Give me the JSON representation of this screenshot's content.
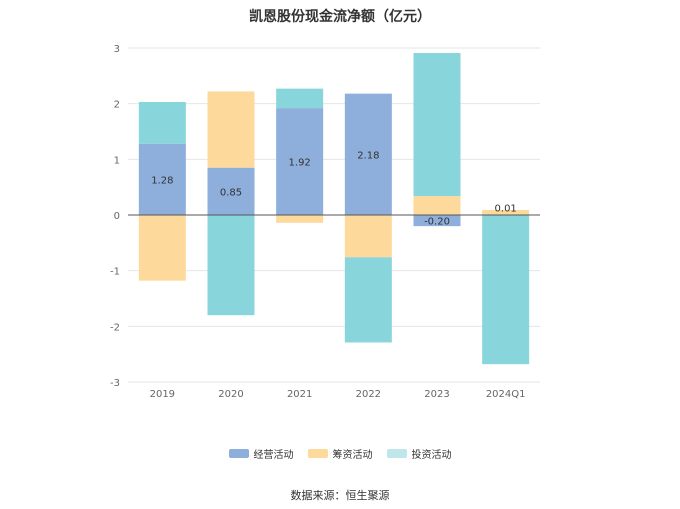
{
  "chart_data": {
    "type": "bar",
    "stacked": true,
    "title": "凯恩股份现金流净额（亿元）",
    "xlabel": "",
    "ylabel": "",
    "categories": [
      "2019",
      "2020",
      "2021",
      "2022",
      "2023",
      "2024Q1"
    ],
    "ylim": [
      -3,
      3
    ],
    "yticks": [
      3,
      2,
      1,
      0,
      -1,
      -2,
      -3
    ],
    "grid": true,
    "legend_position": "bottom",
    "series": [
      {
        "name": "经营活动",
        "color": "#8eaedb",
        "values": [
          1.28,
          0.85,
          1.92,
          2.18,
          -0.2,
          0.01
        ]
      },
      {
        "name": "筹资活动",
        "color": "#fdd99b",
        "values": [
          -1.18,
          1.37,
          -0.14,
          -0.76,
          0.34,
          0.08
        ]
      },
      {
        "name": "投资活动",
        "color": "#88d5db",
        "values": [
          0.75,
          -1.8,
          0.35,
          -1.53,
          2.57,
          -2.68
        ]
      }
    ],
    "data_labels": [
      "1.28",
      "0.85",
      "1.92",
      "2.18",
      "-0.20",
      "0.01"
    ]
  },
  "source_text": "数据来源：恒生聚源"
}
